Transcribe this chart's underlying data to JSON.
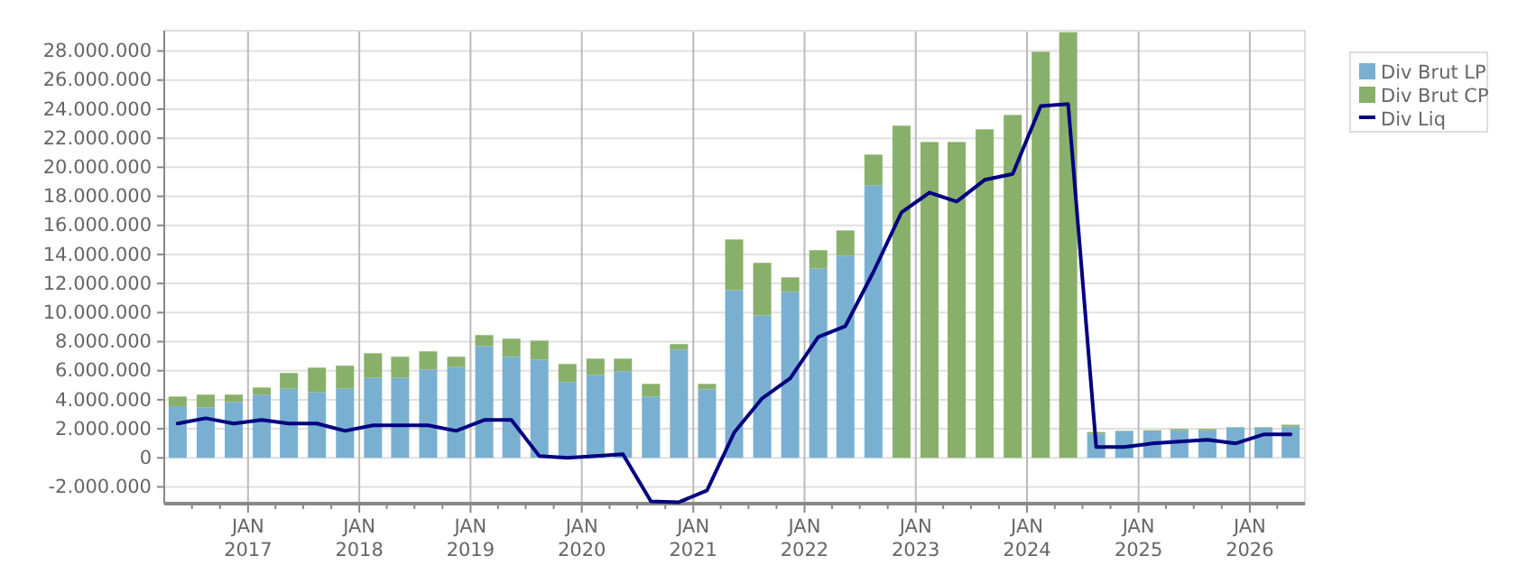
{
  "chart_data": {
    "type": "bar",
    "stacked": true,
    "x": [
      "2016-05-15",
      "2016-08-15",
      "2016-11-15",
      "2017-02-15",
      "2017-05-15",
      "2017-08-15",
      "2017-11-15",
      "2018-02-15",
      "2018-05-15",
      "2018-08-15",
      "2018-11-15",
      "2019-02-15",
      "2019-05-15",
      "2019-08-15",
      "2019-11-15",
      "2020-02-15",
      "2020-05-15",
      "2020-08-15",
      "2020-11-15",
      "2021-02-15",
      "2021-05-15",
      "2021-08-15",
      "2021-11-15",
      "2022-02-15",
      "2022-05-15",
      "2022-08-15",
      "2022-11-15",
      "2023-02-15",
      "2023-05-15",
      "2023-08-15",
      "2023-11-15",
      "2024-02-15",
      "2024-05-15",
      "2024-08-15",
      "2024-11-15",
      "2025-02-15",
      "2025-05-15",
      "2025-08-15",
      "2025-11-15",
      "2026-02-15",
      "2026-05-15"
    ],
    "series": [
      {
        "name": "Div Brut LP",
        "color": "#79b0d2",
        "values": [
          3560000,
          3480000,
          3850000,
          4350000,
          4760000,
          4510000,
          4760000,
          5510000,
          5510000,
          6090000,
          6250000,
          7700000,
          6960000,
          6750000,
          5220000,
          5710000,
          5960000,
          4220000,
          7450000,
          4720000,
          11550000,
          9810000,
          11430000,
          13040000,
          13910000,
          18760000,
          0,
          0,
          0,
          0,
          0,
          0,
          0,
          1660000,
          1820000,
          1820000,
          1900000,
          1900000,
          2070000,
          2070000,
          2150000
        ]
      },
      {
        "name": "Div Brut CP",
        "color": "#89b06a",
        "values": [
          660000,
          870000,
          500000,
          490000,
          1080000,
          1700000,
          1580000,
          1690000,
          1450000,
          1240000,
          710000,
          750000,
          1240000,
          1320000,
          1240000,
          1120000,
          870000,
          870000,
          380000,
          370000,
          3480000,
          3610000,
          990000,
          1250000,
          1740000,
          2110000,
          22860000,
          21740000,
          21740000,
          22610000,
          23600000,
          27950000,
          29300000,
          120000,
          40000,
          80000,
          90000,
          90000,
          40000,
          40000,
          130000
        ]
      },
      {
        "name": "Div Liq",
        "type": "line",
        "color": "#000080",
        "values": [
          2360000,
          2730000,
          2360000,
          2610000,
          2360000,
          2360000,
          1860000,
          2240000,
          2240000,
          2240000,
          1860000,
          2610000,
          2610000,
          120000,
          0,
          120000,
          250000,
          -3000000,
          -3050000,
          -2240000,
          1740000,
          4100000,
          5470000,
          8320000,
          9070000,
          12800000,
          16890000,
          18260000,
          17640000,
          19130000,
          19540000,
          24220000,
          24350000,
          750000,
          750000,
          990000,
          1120000,
          1240000,
          990000,
          1610000,
          1610000
        ]
      }
    ],
    "xlim": [
      "2016-04-01",
      "2026-07-01"
    ],
    "xticks": [
      {
        "value": "2016-07-01",
        "label": null
      },
      {
        "value": "2016-10-01",
        "label": null
      },
      {
        "value": "2017-01-01",
        "label": "JAN\n2017"
      },
      {
        "value": "2017-04-01",
        "label": null
      },
      {
        "value": "2017-07-01",
        "label": null
      },
      {
        "value": "2017-10-01",
        "label": null
      },
      {
        "value": "2018-01-01",
        "label": "JAN\n2018"
      },
      {
        "value": "2018-04-01",
        "label": null
      },
      {
        "value": "2018-07-01",
        "label": null
      },
      {
        "value": "2018-10-01",
        "label": null
      },
      {
        "value": "2019-01-01",
        "label": "JAN\n2019"
      },
      {
        "value": "2019-04-01",
        "label": null
      },
      {
        "value": "2019-07-01",
        "label": null
      },
      {
        "value": "2019-10-01",
        "label": null
      },
      {
        "value": "2020-01-01",
        "label": "JAN\n2020"
      },
      {
        "value": "2020-04-01",
        "label": null
      },
      {
        "value": "2020-07-01",
        "label": null
      },
      {
        "value": "2020-10-01",
        "label": null
      },
      {
        "value": "2021-01-01",
        "label": "JAN\n2021"
      },
      {
        "value": "2021-04-01",
        "label": null
      },
      {
        "value": "2021-07-01",
        "label": null
      },
      {
        "value": "2021-10-01",
        "label": null
      },
      {
        "value": "2022-01-01",
        "label": "JAN\n2022"
      },
      {
        "value": "2022-04-01",
        "label": null
      },
      {
        "value": "2022-07-01",
        "label": null
      },
      {
        "value": "2022-10-01",
        "label": null
      },
      {
        "value": "2023-01-01",
        "label": "JAN\n2023"
      },
      {
        "value": "2023-04-01",
        "label": null
      },
      {
        "value": "2023-07-01",
        "label": null
      },
      {
        "value": "2023-10-01",
        "label": null
      },
      {
        "value": "2024-01-01",
        "label": "JAN\n2024"
      },
      {
        "value": "2024-04-01",
        "label": null
      },
      {
        "value": "2024-07-01",
        "label": null
      },
      {
        "value": "2024-10-01",
        "label": null
      },
      {
        "value": "2025-01-01",
        "label": "JAN\n2025"
      },
      {
        "value": "2025-04-01",
        "label": null
      },
      {
        "value": "2025-07-01",
        "label": null
      },
      {
        "value": "2025-10-01",
        "label": null
      },
      {
        "value": "2026-01-01",
        "label": "JAN\n2026"
      },
      {
        "value": "2026-04-01",
        "label": null
      }
    ],
    "ylim": [
      -3150000,
      29400000
    ],
    "yticks": [
      {
        "value": -2000000,
        "label": "-2.000.000"
      },
      0,
      {
        "value": 2000000,
        "label": "2.000.000"
      },
      {
        "value": 4000000,
        "label": "4.000.000"
      },
      {
        "value": 6000000,
        "label": "6.000.000"
      },
      {
        "value": 8000000,
        "label": "8.000.000"
      },
      {
        "value": 10000000,
        "label": "10.000.000"
      },
      {
        "value": 12000000,
        "label": "12.000.000"
      },
      {
        "value": 14000000,
        "label": "14.000.000"
      },
      {
        "value": 16000000,
        "label": "16.000.000"
      },
      {
        "value": 18000000,
        "label": "18.000.000"
      },
      {
        "value": 20000000,
        "label": "20.000.000"
      },
      {
        "value": 22000000,
        "label": "22.000.000"
      },
      {
        "value": 24000000,
        "label": "24.000.000"
      },
      {
        "value": 26000000,
        "label": "26.000.000"
      },
      {
        "value": 28000000,
        "label": "28.000.000"
      }
    ],
    "grid": true,
    "legend": "top right",
    "marker": "none",
    "line_style": "solid"
  }
}
